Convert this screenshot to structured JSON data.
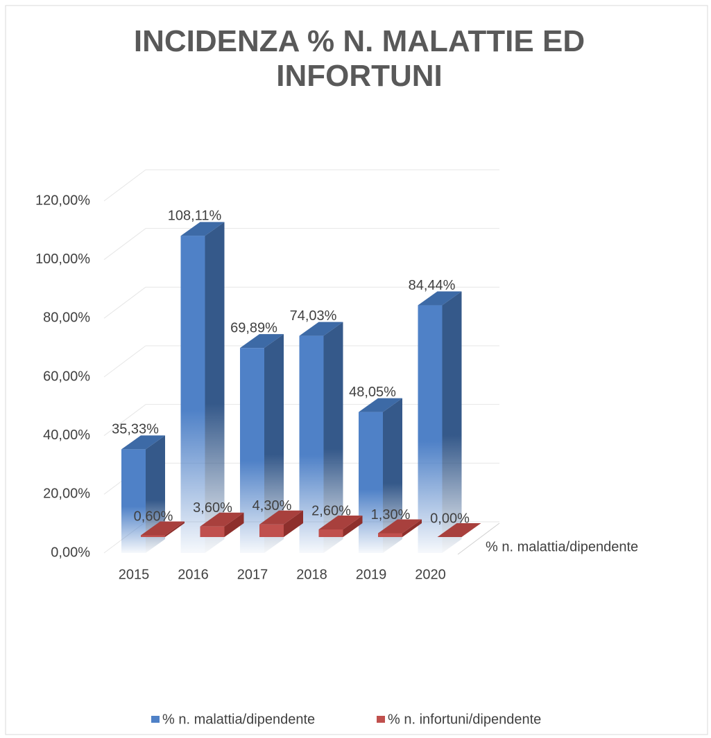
{
  "chart_data": {
    "type": "bar3d",
    "title": "INCIDENZA % N. MALATTIE ED INFORTUNI",
    "categories": [
      "2015",
      "2016",
      "2017",
      "2018",
      "2019",
      "2020"
    ],
    "depth_categories": [
      "% n. malattia/dipendente"
    ],
    "series": [
      {
        "name": "% n. malattia/dipendente",
        "color": "#4f81c7",
        "values": [
          35.33,
          108.11,
          69.89,
          74.03,
          48.05,
          84.44
        ],
        "value_labels": [
          "35,33%",
          "108,11%",
          "69,89%",
          "74,03%",
          "48,05%",
          "84,44%"
        ]
      },
      {
        "name": "% n. infortuni/dipendente",
        "color": "#c0504d",
        "values": [
          0.6,
          3.6,
          4.3,
          2.6,
          1.3,
          0.0
        ],
        "value_labels": [
          "0,60%",
          "3,60%",
          "4,30%",
          "2,60%",
          "1,30%",
          "0,00%"
        ]
      }
    ],
    "ylim": [
      0,
      120
    ],
    "yticks": [
      {
        "value": 0,
        "label": "0,00%"
      },
      {
        "value": 20,
        "label": "20,00%"
      },
      {
        "value": 40,
        "label": "40,00%"
      },
      {
        "value": 60,
        "label": "60,00%"
      },
      {
        "value": 80,
        "label": "80,00%"
      },
      {
        "value": 100,
        "label": "100,00%"
      },
      {
        "value": 120,
        "label": "120,00%"
      }
    ],
    "grid": true
  }
}
